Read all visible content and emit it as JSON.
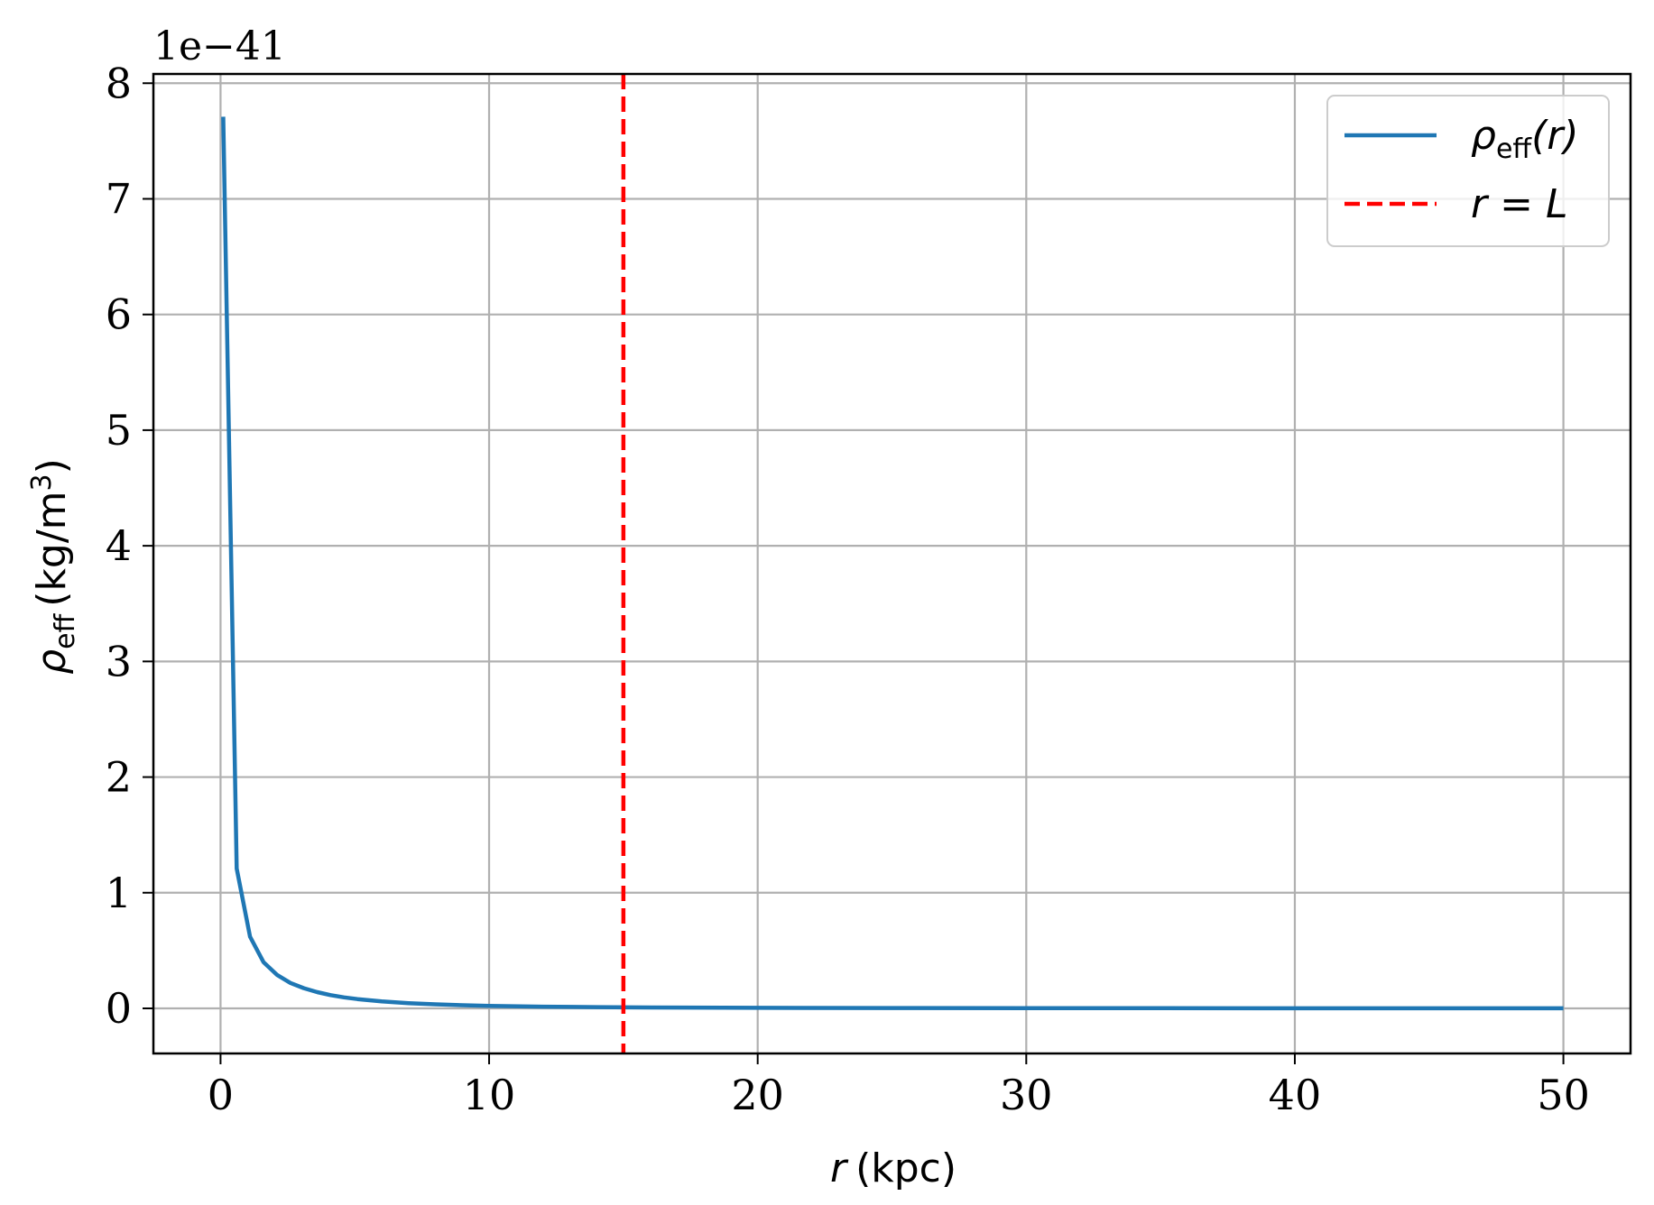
{
  "chart_data": {
    "type": "line",
    "title": "",
    "xlabel": {
      "symbol": "r",
      "unit": "(kpc)"
    },
    "ylabel": {
      "symbol": "ρ",
      "subscript": "eff",
      "unit_pre": "(kg/m",
      "unit_sup": "3",
      "unit_post": ")"
    },
    "offset_text": "1e−41",
    "xlim": [
      -2.5,
      52.5
    ],
    "ylim": [
      -0.39,
      8.08
    ],
    "xticks": [
      0,
      10,
      20,
      30,
      40,
      50
    ],
    "xtick_labels": [
      "0",
      "10",
      "20",
      "30",
      "40",
      "50"
    ],
    "yticks": [
      0,
      1,
      2,
      3,
      4,
      5,
      6,
      7,
      8
    ],
    "ytick_labels": [
      "0",
      "1",
      "2",
      "3",
      "4",
      "5",
      "6",
      "7",
      "8"
    ],
    "grid": true,
    "legend_position": "top-right",
    "series": [
      {
        "name": {
          "symbol": "ρ",
          "subscript": "eff",
          "arg": "(r)"
        },
        "color": "#1f77b4",
        "style": "solid",
        "x": [
          0.1,
          0.6,
          1.1,
          1.6,
          2.1,
          2.6,
          3.1,
          3.6,
          4.1,
          4.6,
          5.1,
          6.0,
          7.0,
          8.0,
          9.0,
          10.0,
          12.0,
          14.0,
          16.0,
          20.0,
          25.0,
          30.0,
          35.0,
          40.0,
          45.0,
          50.0
        ],
        "y": [
          7.71,
          1.21,
          0.62,
          0.4,
          0.29,
          0.22,
          0.175,
          0.14,
          0.115,
          0.095,
          0.08,
          0.06,
          0.045,
          0.035,
          0.027,
          0.022,
          0.015,
          0.011,
          0.008,
          0.005,
          0.003,
          0.002,
          0.0015,
          0.001,
          0.0008,
          0.0006
        ]
      },
      {
        "name": {
          "lhs": "r",
          "op": " = ",
          "rhs": "L"
        },
        "color": "#ff0000",
        "style": "dashed",
        "type": "vline",
        "x_value": 15
      }
    ]
  }
}
